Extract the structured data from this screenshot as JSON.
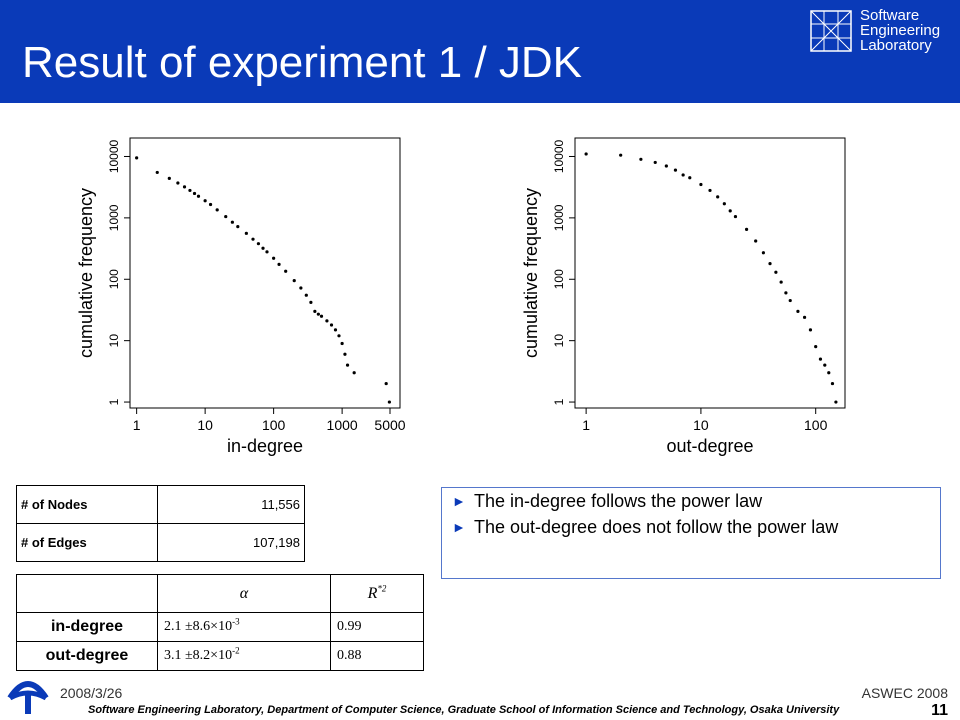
{
  "slide": {
    "title": "Result of experiment 1 / JDK",
    "logo_lines": [
      "Software",
      "Engineering",
      "Laboratory"
    ]
  },
  "plots": [
    {
      "xlabel": "in-degree",
      "ylabel": "cumulative frequency"
    },
    {
      "xlabel": "out-degree",
      "ylabel": "cumulative frequency"
    }
  ],
  "chart_data": [
    {
      "type": "scatter",
      "xlabel": "in-degree",
      "ylabel": "cumulative frequency",
      "x_scale": "log",
      "y_scale": "log",
      "x_ticks": [
        "1",
        "10",
        "100",
        "1000",
        "5000"
      ],
      "y_ticks": [
        "1",
        "10",
        "100",
        "1000",
        "10000"
      ],
      "xlim": [
        0.8,
        7000
      ],
      "ylim": [
        0.8,
        20000
      ],
      "points": [
        [
          1,
          9500
        ],
        [
          2,
          5500
        ],
        [
          3,
          4400
        ],
        [
          4,
          3700
        ],
        [
          5,
          3200
        ],
        [
          6,
          2800
        ],
        [
          7,
          2500
        ],
        [
          8,
          2250
        ],
        [
          10,
          1900
        ],
        [
          12,
          1650
        ],
        [
          15,
          1350
        ],
        [
          20,
          1050
        ],
        [
          25,
          850
        ],
        [
          30,
          720
        ],
        [
          40,
          560
        ],
        [
          50,
          450
        ],
        [
          60,
          380
        ],
        [
          70,
          320
        ],
        [
          80,
          280
        ],
        [
          100,
          220
        ],
        [
          120,
          175
        ],
        [
          150,
          135
        ],
        [
          200,
          95
        ],
        [
          250,
          72
        ],
        [
          300,
          55
        ],
        [
          350,
          42
        ],
        [
          400,
          30
        ],
        [
          450,
          27
        ],
        [
          500,
          25
        ],
        [
          600,
          21
        ],
        [
          700,
          18
        ],
        [
          800,
          15
        ],
        [
          900,
          12
        ],
        [
          1000,
          9
        ],
        [
          1100,
          6
        ],
        [
          1200,
          4
        ],
        [
          1500,
          3
        ],
        [
          4400,
          2
        ],
        [
          4900,
          1
        ]
      ]
    },
    {
      "type": "scatter",
      "xlabel": "out-degree",
      "ylabel": "cumulative frequency",
      "x_scale": "log",
      "y_scale": "log",
      "x_ticks": [
        "1",
        "10",
        "100"
      ],
      "y_ticks": [
        "1",
        "10",
        "100",
        "1000",
        "10000"
      ],
      "xlim": [
        0.8,
        180
      ],
      "ylim": [
        0.8,
        20000
      ],
      "points": [
        [
          1,
          11000
        ],
        [
          2,
          10500
        ],
        [
          3,
          9000
        ],
        [
          4,
          8000
        ],
        [
          5,
          7000
        ],
        [
          6,
          6000
        ],
        [
          7,
          5000
        ],
        [
          8,
          4500
        ],
        [
          10,
          3500
        ],
        [
          12,
          2800
        ],
        [
          14,
          2200
        ],
        [
          16,
          1700
        ],
        [
          18,
          1300
        ],
        [
          20,
          1050
        ],
        [
          25,
          650
        ],
        [
          30,
          420
        ],
        [
          35,
          270
        ],
        [
          40,
          180
        ],
        [
          45,
          130
        ],
        [
          50,
          90
        ],
        [
          55,
          60
        ],
        [
          60,
          45
        ],
        [
          70,
          30
        ],
        [
          80,
          24
        ],
        [
          90,
          15
        ],
        [
          100,
          8
        ],
        [
          110,
          5
        ],
        [
          120,
          4
        ],
        [
          130,
          3
        ],
        [
          140,
          2
        ],
        [
          150,
          1
        ]
      ]
    }
  ],
  "stats": {
    "nodes_label": "# of Nodes",
    "nodes_value": "11,556",
    "edges_label": "# of Edges",
    "edges_value": "107,198"
  },
  "fit": {
    "alpha_header": "α",
    "r2_header": "R",
    "r2_sup": "*2",
    "rows": [
      {
        "label": "in-degree",
        "alpha": "2.1 ±8.6×10",
        "alpha_exp": "-3",
        "r2": "0.99"
      },
      {
        "label": "out-degree",
        "alpha": "3.1 ±8.2×10",
        "alpha_exp": "-2",
        "r2": "0.88"
      }
    ]
  },
  "notes": [
    "The in-degree follows the power law",
    "The out-degree does not follow the power law"
  ],
  "footer": {
    "date": "2008/3/26",
    "conference": "ASWEC 2008",
    "lab": "Software Engineering Laboratory, Department of Computer Science, Graduate School of Information Science and Technology, Osaka University",
    "page": "11"
  },
  "colors": {
    "header": "#0a3ab8",
    "bullet": "#0a3ab8",
    "note_border": "#5577cc"
  },
  "icons": {
    "lab_logo": "grid-logo-icon",
    "bullet": "right-triangle-icon",
    "university_logo": "osaka-university-logo-icon"
  }
}
